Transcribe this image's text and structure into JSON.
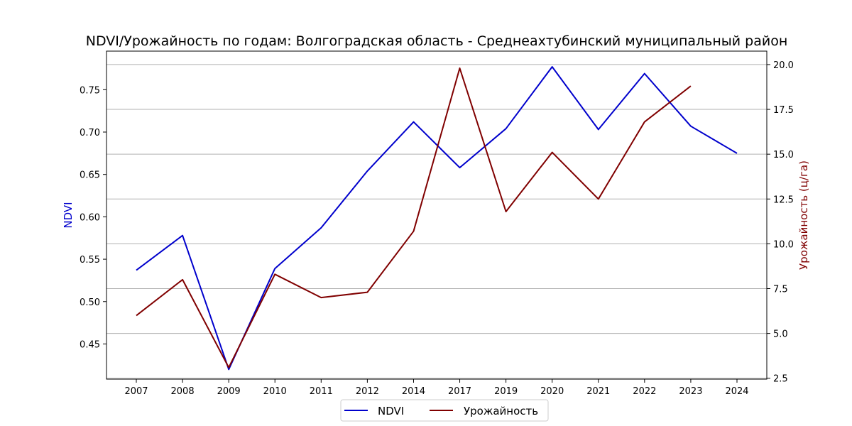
{
  "chart_data": {
    "type": "line",
    "title": "NDVI/Урожайность по годам: Волгоградская область - Среднеахтубинский муниципальный район",
    "categories": [
      "2007",
      "2008",
      "2009",
      "2010",
      "2011",
      "2012",
      "2014",
      "2017",
      "2019",
      "2020",
      "2021",
      "2022",
      "2023",
      "2024"
    ],
    "ylabel_left": "NDVI",
    "ylabel_right": "Урожайность (ц/га)",
    "ylim_left": [
      0.4085,
      0.7955
    ],
    "ylim_right": [
      2.45,
      20.75
    ],
    "yticks_left": [
      0.45,
      0.5,
      0.55,
      0.6,
      0.65,
      0.7,
      0.75
    ],
    "ytick_labels_left": [
      "0.45",
      "0.50",
      "0.55",
      "0.60",
      "0.65",
      "0.70",
      "0.75"
    ],
    "yticks_right": [
      2.5,
      5.0,
      7.5,
      10.0,
      12.5,
      15.0,
      17.5,
      20.0
    ],
    "ytick_labels_right": [
      "2.5",
      "5.0",
      "7.5",
      "10.0",
      "12.5",
      "15.0",
      "17.5",
      "20.0"
    ],
    "grid": "horizontal (right axis)",
    "legend_position": "bottom-center",
    "series": [
      {
        "name": "NDVI",
        "axis": "left",
        "color": "#0000cc",
        "values": [
          0.537,
          0.578,
          0.42,
          0.539,
          0.587,
          0.654,
          0.712,
          0.658,
          0.704,
          0.777,
          0.703,
          0.769,
          0.707,
          0.675
        ]
      },
      {
        "name": "Урожайность",
        "axis": "right",
        "color": "#800000",
        "values": [
          6.0,
          8.0,
          3.1,
          8.3,
          7.0,
          7.3,
          10.7,
          19.8,
          11.8,
          15.1,
          12.5,
          16.8,
          18.8,
          null
        ]
      }
    ],
    "colors": {
      "left_axis_label": "#0000cc",
      "right_axis_label": "#800000",
      "grid": "#b0b0b0"
    }
  }
}
